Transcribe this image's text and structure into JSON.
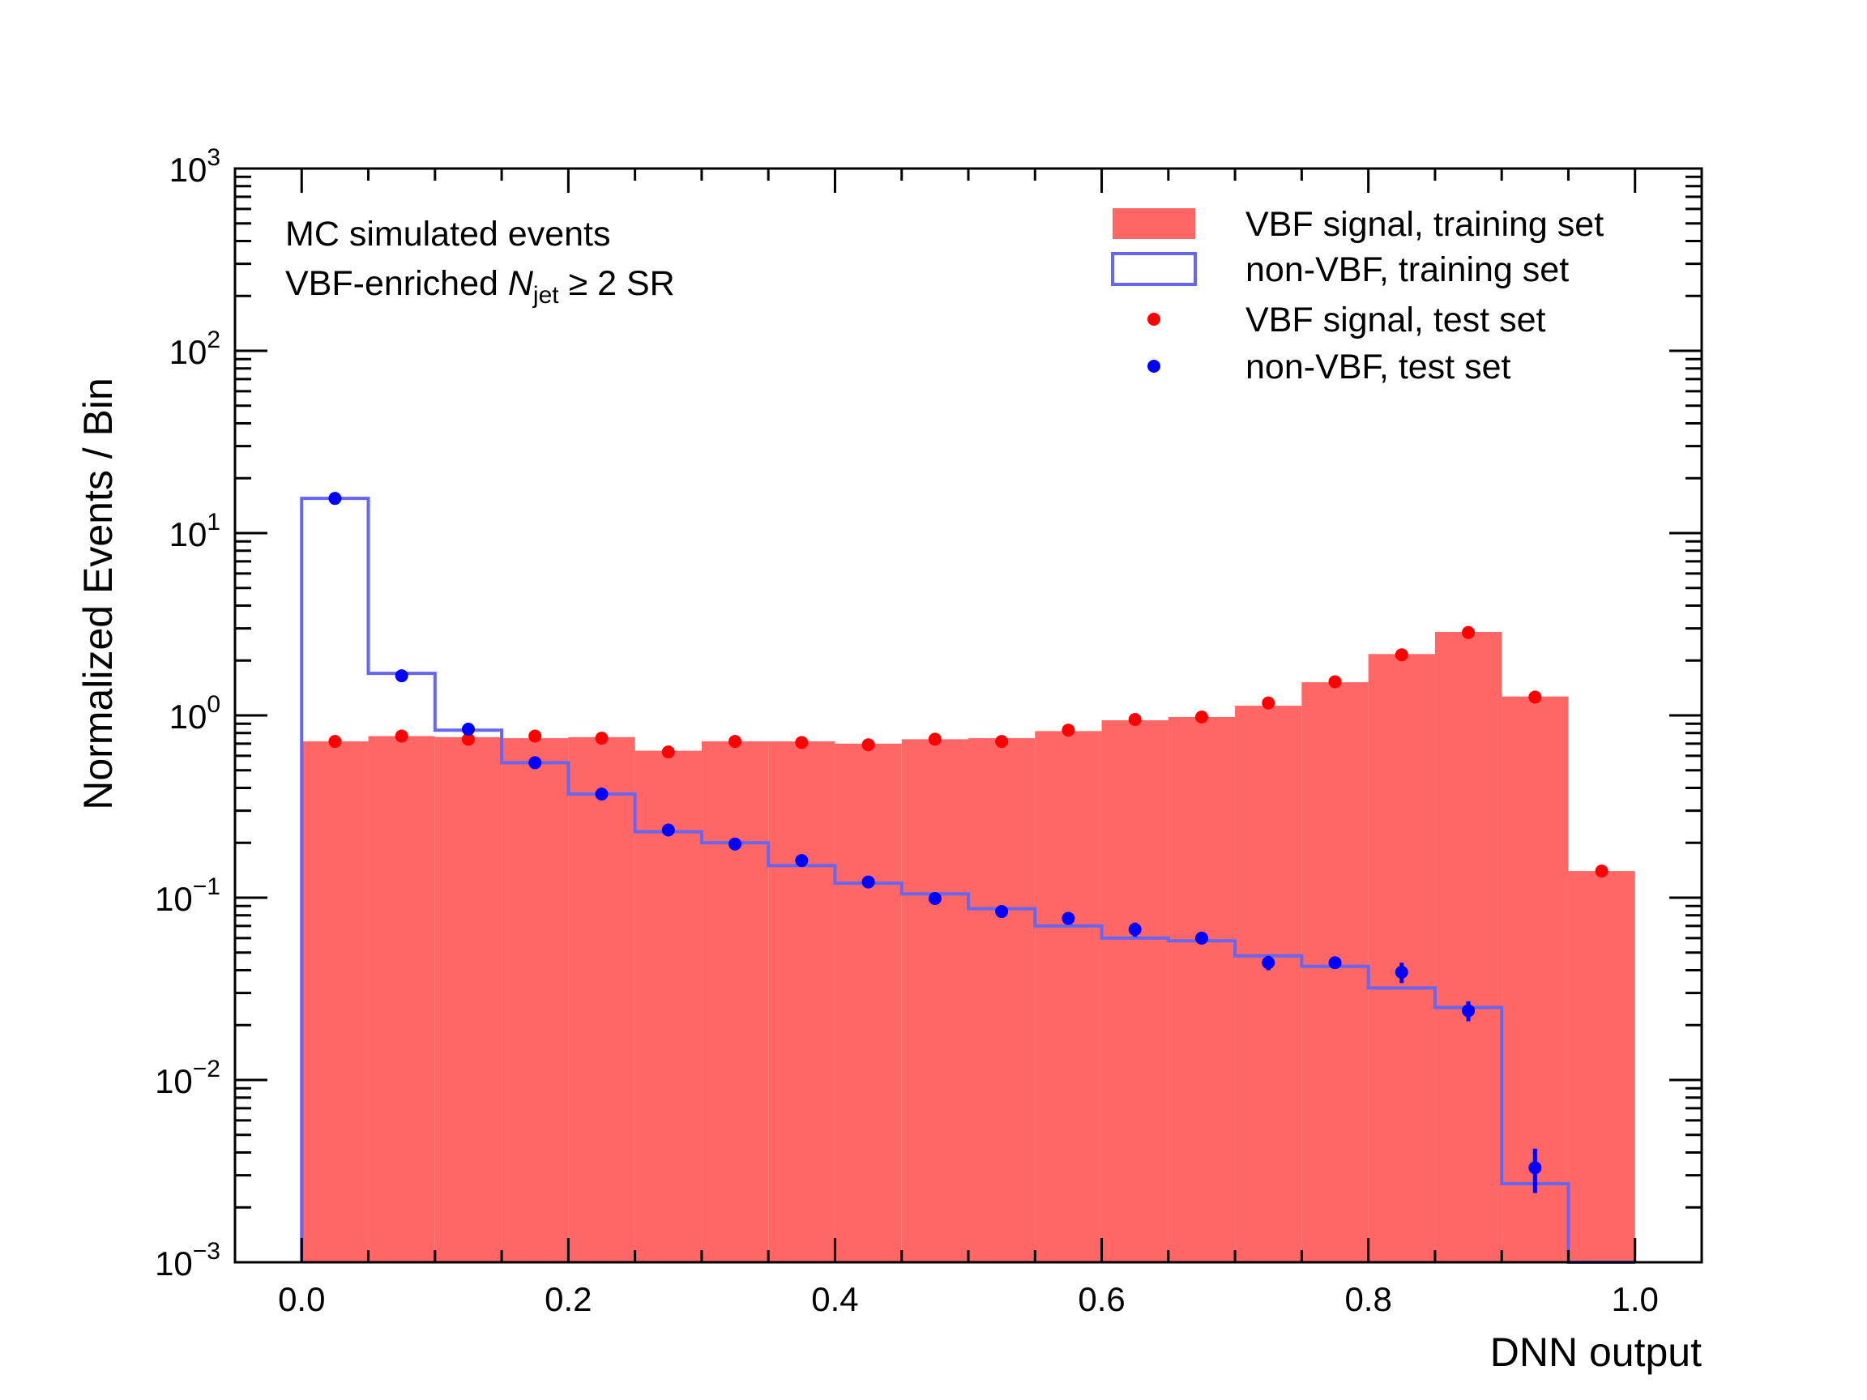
{
  "chart_data": {
    "type": "bar",
    "xlabel": "DNN output",
    "ylabel": "Normalized Events / Bin",
    "xlim": [
      -0.05,
      1.05
    ],
    "ylim": [
      0.001,
      1000
    ],
    "y_scale": "log",
    "x_ticks": [
      "0.0",
      "0.2",
      "0.4",
      "0.6",
      "0.8",
      "1.0"
    ],
    "y_ticks": [
      {
        "base": "10",
        "exp": "−3"
      },
      {
        "base": "10",
        "exp": "−2"
      },
      {
        "base": "10",
        "exp": "−1"
      },
      {
        "base": "10",
        "exp": "0"
      },
      {
        "base": "10",
        "exp": "1"
      },
      {
        "base": "10",
        "exp": "2"
      },
      {
        "base": "10",
        "exp": "3"
      }
    ],
    "annotation": {
      "line1": "MC simulated events",
      "line2_pre": "VBF-enriched ",
      "line2_N": "N",
      "line2_sub": "jet",
      "line2_post": " ≥ 2 SR"
    },
    "bin_edges": [
      0.0,
      0.05,
      0.1,
      0.15,
      0.2,
      0.25,
      0.3,
      0.35,
      0.4,
      0.45,
      0.5,
      0.55,
      0.6,
      0.65,
      0.7,
      0.75,
      0.8,
      0.85,
      0.9,
      0.95,
      1.0
    ],
    "bin_centers": [
      0.025,
      0.075,
      0.125,
      0.175,
      0.225,
      0.275,
      0.325,
      0.375,
      0.425,
      0.475,
      0.525,
      0.575,
      0.625,
      0.675,
      0.725,
      0.775,
      0.825,
      0.875,
      0.925,
      0.975
    ],
    "series": [
      {
        "name": "VBF signal, training set",
        "style": "filled-histogram",
        "color": "#ff6666",
        "values": [
          0.72,
          0.77,
          0.76,
          0.75,
          0.76,
          0.64,
          0.72,
          0.72,
          0.7,
          0.74,
          0.75,
          0.82,
          0.94,
          0.98,
          1.13,
          1.52,
          2.17,
          2.87,
          1.27,
          0.14
        ]
      },
      {
        "name": "non-VBF, training set",
        "style": "step-histogram",
        "color": "#6666ee",
        "values": [
          15.5,
          1.7,
          0.83,
          0.55,
          0.37,
          0.23,
          0.2,
          0.15,
          0.12,
          0.105,
          0.087,
          0.07,
          0.06,
          0.058,
          0.048,
          0.042,
          0.032,
          0.025,
          0.0027,
          0.0
        ]
      },
      {
        "name": "VBF signal, test set",
        "style": "markers",
        "color": "#ff0000",
        "values": [
          0.72,
          0.77,
          0.74,
          0.77,
          0.75,
          0.63,
          0.72,
          0.71,
          0.69,
          0.74,
          0.72,
          0.83,
          0.95,
          0.98,
          1.17,
          1.53,
          2.15,
          2.85,
          1.26,
          0.14
        ]
      },
      {
        "name": "non-VBF, test set",
        "style": "markers-with-errors",
        "color": "#0000ff",
        "values": [
          15.5,
          1.65,
          0.84,
          0.55,
          0.37,
          0.235,
          0.197,
          0.16,
          0.122,
          0.099,
          0.084,
          0.077,
          0.067,
          0.06,
          0.044,
          0.044,
          0.039,
          0.024,
          0.0033,
          null
        ],
        "errors": [
          0.3,
          0.05,
          0.02,
          0.015,
          0.01,
          0.008,
          0.006,
          0.005,
          0.004,
          0.004,
          0.003,
          0.003,
          0.006,
          0.003,
          0.004,
          0.003,
          0.005,
          0.003,
          0.0009,
          null
        ]
      }
    ],
    "legend_position": "top-right",
    "grid": false
  }
}
